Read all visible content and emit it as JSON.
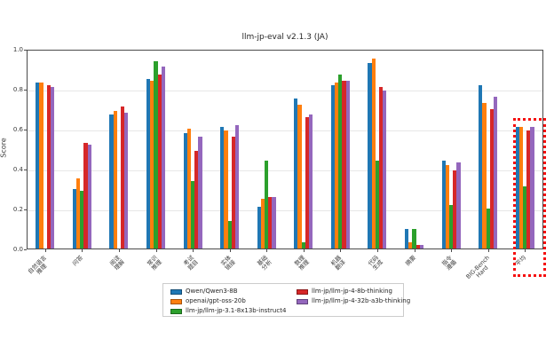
{
  "chart_data": {
    "type": "bar",
    "title": "llm-jp-eval v2.1.3 (JA)",
    "xlabel": "",
    "ylabel": "Score",
    "ylim": [
      0.0,
      1.0
    ],
    "yticks": [
      0.0,
      0.2,
      0.4,
      0.6,
      0.8,
      1.0
    ],
    "grid": true,
    "legend_position": "bottom-center",
    "categories": [
      "自然语言推理",
      "问答",
      "阅读理解",
      "常识推理",
      "考试题目",
      "实体链接",
      "基础分析",
      "数理推理",
      "机器翻译",
      "代码生成",
      "摘要",
      "指令遵循",
      "BIG-Bench Hard",
      "平均"
    ],
    "category_label_lines": [
      [
        "自然语言",
        "推理"
      ],
      [
        "问答"
      ],
      [
        "阅读",
        "理解"
      ],
      [
        "常识",
        "推理"
      ],
      [
        "考试",
        "题目"
      ],
      [
        "实体",
        "链接"
      ],
      [
        "基础",
        "分析"
      ],
      [
        "数理",
        "推理"
      ],
      [
        "机器",
        "翻译"
      ],
      [
        "代码",
        "生成"
      ],
      [
        "摘要"
      ],
      [
        "指令",
        "遵循"
      ],
      [
        "BIG-Bench",
        "Hard"
      ],
      [
        "平均"
      ]
    ],
    "series": [
      {
        "name": "Qwen/Qwen3-8B",
        "color": "#1f77b4",
        "values": [
          0.83,
          0.3,
          0.67,
          0.85,
          0.58,
          0.61,
          0.21,
          0.75,
          0.82,
          0.93,
          0.1,
          0.44,
          0.82,
          0.61
        ]
      },
      {
        "name": "openai/gpt-oss-20b",
        "color": "#ff7f0e",
        "values": [
          0.83,
          0.35,
          0.69,
          0.84,
          0.6,
          0.59,
          0.25,
          0.72,
          0.83,
          0.95,
          0.03,
          0.42,
          0.73,
          0.61
        ]
      },
      {
        "name": "llm-jp/llm-jp-3.1-8x13b-instruct4",
        "color": "#2ca02c",
        "values": [
          0.0,
          0.29,
          0.0,
          0.94,
          0.34,
          0.14,
          0.44,
          0.03,
          0.87,
          0.44,
          0.1,
          0.22,
          0.2,
          0.31
        ]
      },
      {
        "name": "llm-jp/llm-jp-4-8b-thinking",
        "color": "#d62728",
        "values": [
          0.82,
          0.53,
          0.71,
          0.87,
          0.49,
          0.56,
          0.26,
          0.66,
          0.84,
          0.81,
          0.02,
          0.39,
          0.7,
          0.59
        ]
      },
      {
        "name": "llm-jp/llm-jp-4-32b-a3b-thinking",
        "color": "#9467bd",
        "values": [
          0.81,
          0.52,
          0.68,
          0.91,
          0.56,
          0.62,
          0.26,
          0.67,
          0.84,
          0.79,
          0.02,
          0.43,
          0.76,
          0.61
        ]
      }
    ],
    "annotation": {
      "shape": "dashed-box",
      "color": "#f50f0f",
      "highlighted_category": "平均"
    },
    "colors": {
      "grid": "#e7e7e7",
      "spine": "#4a4a4a",
      "background": "#ffffff"
    }
  }
}
